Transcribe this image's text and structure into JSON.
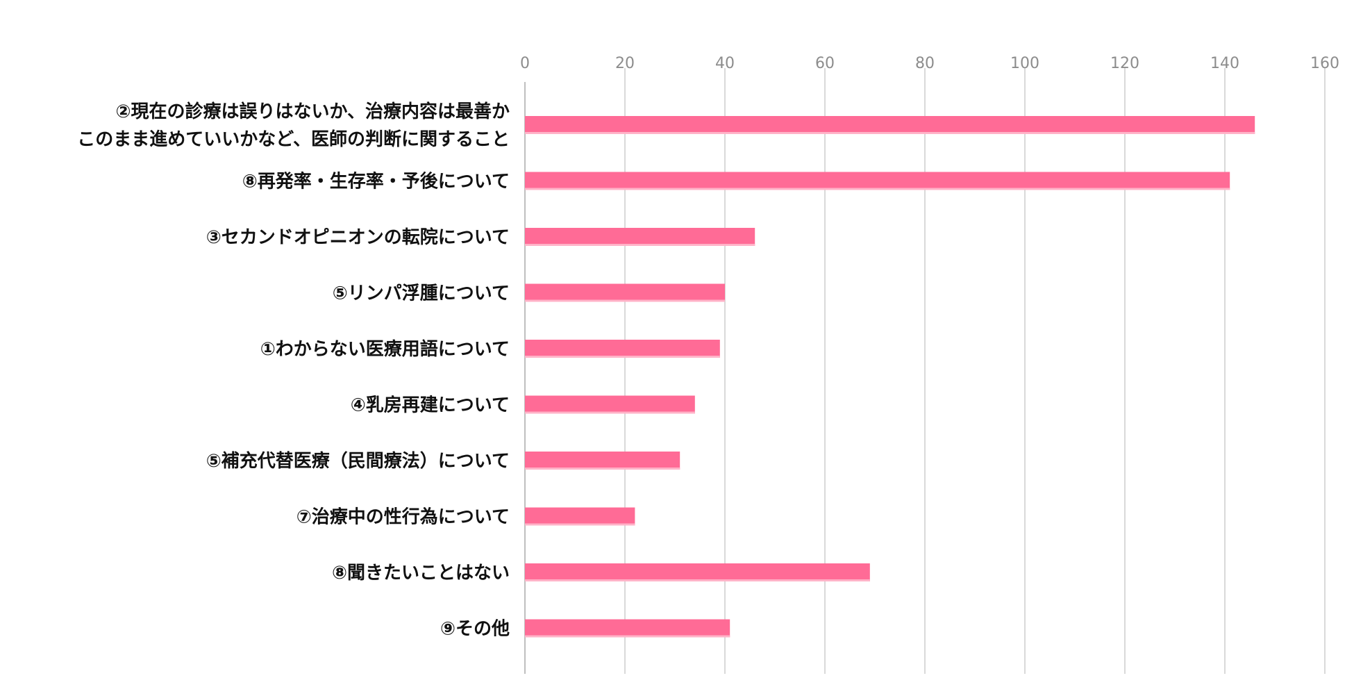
{
  "chart_data": {
    "type": "bar",
    "orientation": "horizontal",
    "title": "",
    "xlabel": "",
    "ylabel": "",
    "xlim": [
      0,
      160
    ],
    "x_ticks": [
      0,
      20,
      40,
      60,
      80,
      100,
      120,
      140,
      160
    ],
    "grid": true,
    "legend": "none",
    "bar_color": "#ff6b96",
    "categories": [
      [
        "②現在の診療は誤りはないか、治療内容は最善か",
        "このまま進めていいかなど、医師の判断に関すること"
      ],
      [
        "⑧再発率・生存率・予後について"
      ],
      [
        "③セカンドオピニオンの転院について"
      ],
      [
        "⑤リンパ浮腫について"
      ],
      [
        "①わからない医療用語について"
      ],
      [
        "④乳房再建について"
      ],
      [
        "⑤補充代替医療（民間療法）について"
      ],
      [
        "⑦治療中の性行為について"
      ],
      [
        "⑧聞きたいことはない"
      ],
      [
        "⑨その他"
      ]
    ],
    "values": [
      146,
      141,
      46,
      40,
      39,
      34,
      31,
      22,
      69,
      41
    ]
  }
}
